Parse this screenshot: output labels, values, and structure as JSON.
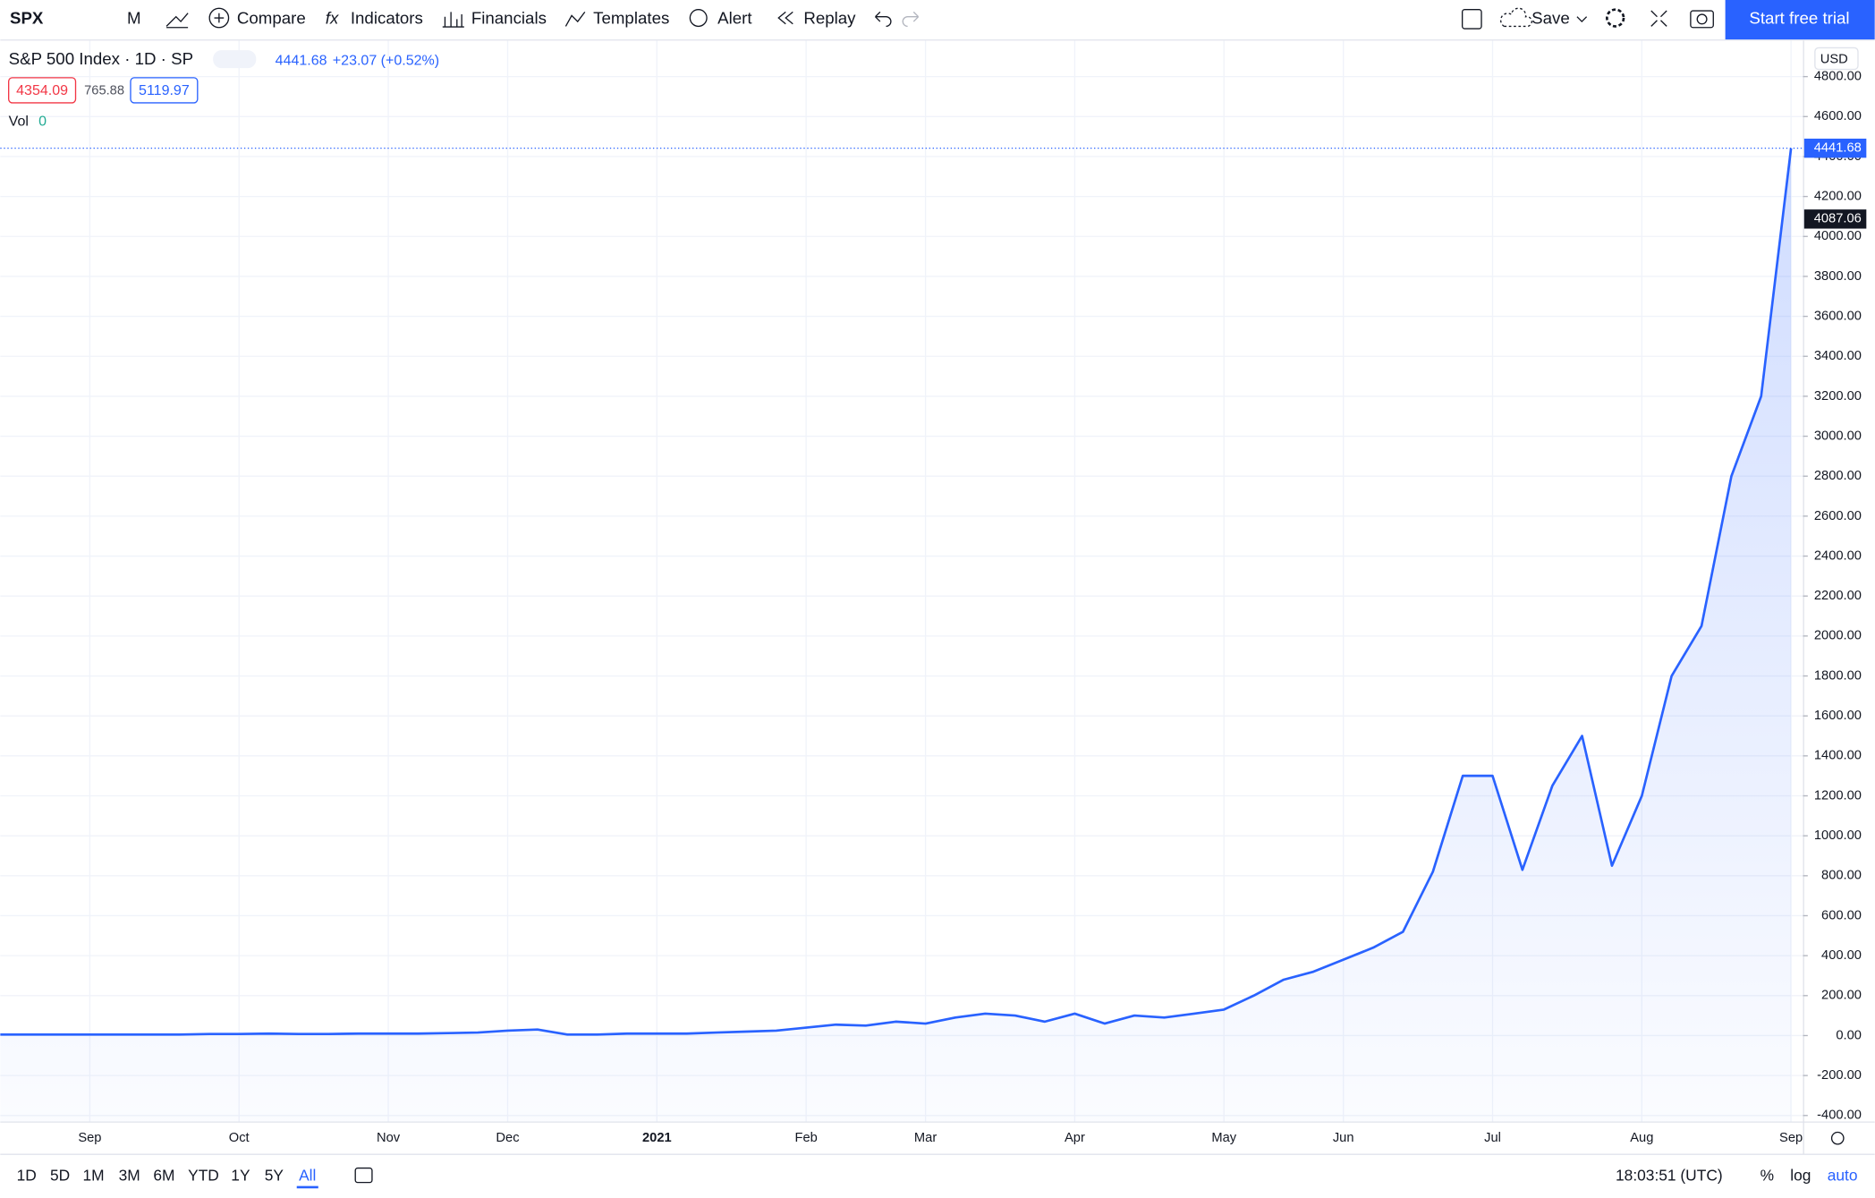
{
  "toolbar": {
    "symbol": "SPX",
    "interval": "M",
    "buttons": [
      "Compare",
      "Indicators",
      "Financials",
      "Templates",
      "Alert",
      "Replay"
    ],
    "save": "Save",
    "trial": "Start free trial"
  },
  "legend": {
    "name": "S&P 500 Index · 1D · SP",
    "price": "4441.68",
    "change": "+23.07 (+0.52%)",
    "boxes": [
      "4354.09",
      "765.88",
      "5119.97"
    ],
    "vol_label": "Vol",
    "vol_value": "0"
  },
  "currency": "USD",
  "chart_data": {
    "type": "line",
    "color": "#2962ff",
    "grid": true,
    "categories": [
      null,
      null,
      null,
      "Sep",
      null,
      null,
      null,
      null,
      "Oct",
      null,
      null,
      null,
      null,
      "Nov",
      null,
      null,
      null,
      "Dec",
      null,
      null,
      null,
      null,
      "2021",
      null,
      null,
      null,
      null,
      "Feb",
      null,
      null,
      null,
      "Mar",
      null,
      null,
      null,
      null,
      "Apr",
      null,
      null,
      null,
      null,
      "May",
      null,
      null,
      null,
      "Jun",
      null,
      null,
      null,
      null,
      "Jul",
      null,
      null,
      null,
      null,
      "Aug",
      null,
      null,
      null,
      null,
      "Sep"
    ],
    "values": [
      5,
      5,
      5,
      5,
      5,
      5,
      5,
      8,
      8,
      10,
      8,
      8,
      10,
      10,
      10,
      12,
      15,
      25,
      30,
      5,
      5,
      10,
      10,
      10,
      15,
      20,
      25,
      40,
      55,
      50,
      70,
      60,
      90,
      110,
      100,
      70,
      110,
      60,
      100,
      90,
      110,
      130,
      200,
      280,
      320,
      380,
      440,
      520,
      820,
      1300,
      1300,
      830,
      1250,
      1500,
      850,
      1200,
      1800,
      2050,
      2800,
      3200,
      4441.68
    ],
    "marker_price": 4087.06,
    "marker_label": "4087.06",
    "ylim": [
      -430,
      4980
    ],
    "yticks": [
      {
        "value": -400,
        "label": "-400.00"
      },
      {
        "value": -200,
        "label": "-200.00"
      },
      {
        "value": 0,
        "label": "0.00"
      },
      {
        "value": 200,
        "label": "200.00"
      },
      {
        "value": 400,
        "label": "400.00"
      },
      {
        "value": 600,
        "label": "600.00"
      },
      {
        "value": 800,
        "label": "800.00"
      },
      {
        "value": 1000,
        "label": "1000.00"
      },
      {
        "value": 1200,
        "label": "1200.00"
      },
      {
        "value": 1400,
        "label": "1400.00"
      },
      {
        "value": 1600,
        "label": "1600.00"
      },
      {
        "value": 1800,
        "label": "1800.00"
      },
      {
        "value": 2000,
        "label": "2000.00"
      },
      {
        "value": 2200,
        "label": "2200.00"
      },
      {
        "value": 2400,
        "label": "2400.00"
      },
      {
        "value": 2600,
        "label": "2600.00"
      },
      {
        "value": 2800,
        "label": "2800.00"
      },
      {
        "value": 3000,
        "label": "3000.00"
      },
      {
        "value": 3200,
        "label": "3200.00"
      },
      {
        "value": 3400,
        "label": "3400.00"
      },
      {
        "value": 3600,
        "label": "3600.00"
      },
      {
        "value": 3800,
        "label": "3800.00"
      },
      {
        "value": 4000,
        "label": "4000.00"
      },
      {
        "value": 4200,
        "label": "4200.00"
      },
      {
        "value": 4400,
        "label": "4400.00"
      },
      {
        "value": 4600,
        "label": "4600.00"
      },
      {
        "value": 4800,
        "label": "4800.00"
      }
    ],
    "last_label": "4441.68"
  },
  "footer": {
    "ranges": [
      "1D",
      "5D",
      "1M",
      "3M",
      "6M",
      "YTD",
      "1Y",
      "5Y",
      "All"
    ],
    "time": "18:03:51 (UTC)",
    "percent": "%",
    "log": "log",
    "auto": "auto"
  }
}
